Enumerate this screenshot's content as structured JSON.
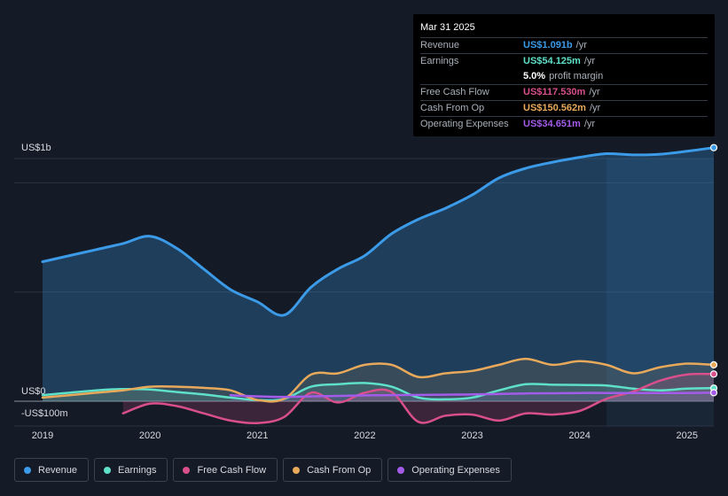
{
  "tooltip": {
    "date": "Mar 31 2025",
    "rows": [
      {
        "label": "Revenue",
        "value": "US$1.091b",
        "unit": "/yr",
        "color": "#3b9be8"
      },
      {
        "label": "Earnings",
        "value": "US$54.125m",
        "unit": "/yr",
        "color": "#5fe0c8"
      },
      {
        "label": "",
        "value": "5.0%",
        "unit": "profit margin",
        "color": "#ffffff"
      },
      {
        "label": "Free Cash Flow",
        "value": "US$117.530m",
        "unit": "/yr",
        "color": "#d84f8c"
      },
      {
        "label": "Cash From Op",
        "value": "US$150.562m",
        "unit": "/yr",
        "color": "#e8a95b"
      },
      {
        "label": "Operating Expenses",
        "value": "US$34.651m",
        "unit": "/yr",
        "color": "#a35ce8"
      }
    ]
  },
  "legend": [
    {
      "label": "Revenue",
      "color": "#3b9be8"
    },
    {
      "label": "Earnings",
      "color": "#5fe0c8"
    },
    {
      "label": "Free Cash Flow",
      "color": "#d84f8c"
    },
    {
      "label": "Cash From Op",
      "color": "#e8a95b"
    },
    {
      "label": "Operating Expenses",
      "color": "#a35ce8"
    }
  ],
  "chart_data": {
    "type": "area",
    "y_tick_labels": [
      "US$1b",
      "US$0",
      "-US$100m"
    ],
    "ylim": [
      -100,
      1000
    ],
    "xlim": [
      2019,
      2025.25
    ],
    "x_tick_labels": [
      "2019",
      "2020",
      "2021",
      "2022",
      "2023",
      "2024",
      "2025"
    ],
    "grid": true,
    "legend_position": "bottom",
    "series": [
      {
        "name": "Revenue",
        "color": "#3b9be8",
        "x": [
          2019.0,
          2019.5,
          2019.75,
          2020.0,
          2020.25,
          2020.5,
          2020.75,
          2021.0,
          2021.25,
          2021.5,
          2021.75,
          2022.0,
          2022.25,
          2022.5,
          2022.75,
          2023.0,
          2023.25,
          2023.5,
          2023.75,
          2024.0,
          2024.25,
          2024.5,
          2024.75,
          2025.0,
          2025.25
        ],
        "y": [
          575,
          625,
          650,
          680,
          630,
          545,
          460,
          410,
          355,
          470,
          545,
          600,
          690,
          750,
          795,
          850,
          920,
          960,
          985,
          1005,
          1020,
          1015,
          1018,
          1030,
          1045
        ]
      },
      {
        "name": "Earnings",
        "color": "#5fe0c8",
        "x": [
          2019.0,
          2019.5,
          2019.75,
          2020.0,
          2020.25,
          2020.5,
          2020.75,
          2021.0,
          2021.25,
          2021.5,
          2021.75,
          2022.0,
          2022.25,
          2022.5,
          2022.75,
          2023.0,
          2023.25,
          2023.5,
          2023.75,
          2024.0,
          2024.25,
          2024.5,
          2024.75,
          2025.0,
          2025.25
        ],
        "y": [
          25,
          45,
          50,
          48,
          38,
          28,
          15,
          5,
          10,
          60,
          70,
          75,
          60,
          15,
          8,
          15,
          45,
          70,
          68,
          67,
          65,
          52,
          45,
          52,
          54
        ]
      },
      {
        "name": "Free Cash Flow",
        "color": "#d84f8c",
        "x": [
          2019.75,
          2020.0,
          2020.25,
          2020.5,
          2020.75,
          2021.0,
          2021.25,
          2021.5,
          2021.75,
          2022.0,
          2022.25,
          2022.5,
          2022.75,
          2023.0,
          2023.25,
          2023.5,
          2023.75,
          2024.0,
          2024.25,
          2024.5,
          2024.75,
          2025.0,
          2025.25
        ],
        "y": [
          -50,
          -10,
          -20,
          -50,
          -80,
          -90,
          -65,
          35,
          -5,
          35,
          38,
          -85,
          -60,
          -55,
          -80,
          -50,
          -55,
          -40,
          10,
          40,
          85,
          110,
          112
        ]
      },
      {
        "name": "Cash From Op",
        "color": "#e8a95b",
        "x": [
          2019.0,
          2019.5,
          2019.75,
          2020.0,
          2020.25,
          2020.5,
          2020.75,
          2021.0,
          2021.25,
          2021.5,
          2021.75,
          2022.0,
          2022.25,
          2022.5,
          2022.75,
          2023.0,
          2023.25,
          2023.5,
          2023.75,
          2024.0,
          2024.25,
          2024.5,
          2024.75,
          2025.0,
          2025.25
        ],
        "y": [
          15,
          35,
          45,
          60,
          60,
          55,
          45,
          5,
          10,
          110,
          115,
          150,
          150,
          100,
          115,
          125,
          150,
          175,
          150,
          165,
          150,
          115,
          140,
          155,
          150
        ]
      },
      {
        "name": "Operating Expenses",
        "color": "#a35ce8",
        "x": [
          2020.75,
          2021.0,
          2021.25,
          2021.5,
          2021.75,
          2022.0,
          2022.25,
          2022.5,
          2022.75,
          2023.0,
          2023.25,
          2023.5,
          2023.75,
          2024.0,
          2024.25,
          2024.5,
          2024.75,
          2025.0,
          2025.25
        ],
        "y": [
          25,
          20,
          18,
          20,
          22,
          24,
          25,
          26,
          27,
          28,
          30,
          32,
          33,
          34,
          34,
          34,
          34,
          34,
          35
        ]
      }
    ]
  }
}
